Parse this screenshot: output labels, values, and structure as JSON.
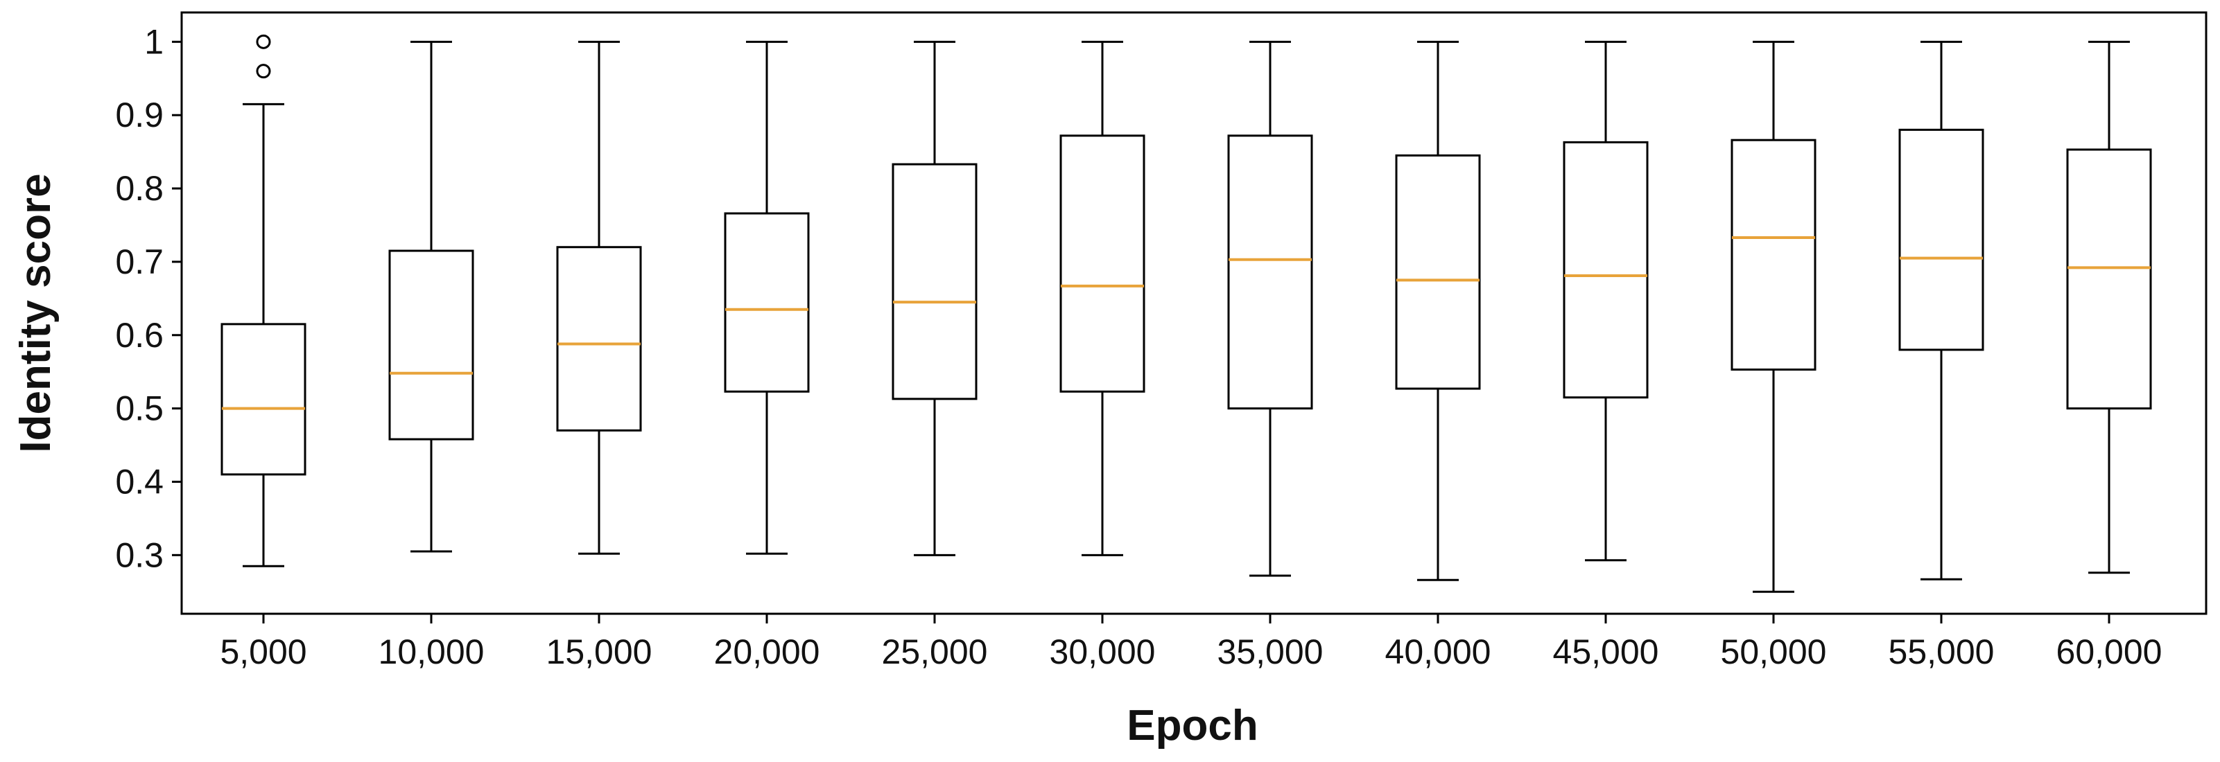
{
  "chart_data": {
    "type": "boxplot",
    "xlabel": "Epoch",
    "ylabel": "Identity score",
    "ylim": [
      0.22,
      1.04
    ],
    "yticks": [
      0.3,
      0.4,
      0.5,
      0.6,
      0.7,
      0.8,
      0.9,
      1
    ],
    "ytick_labels": [
      "0.3",
      "0.4",
      "0.5",
      "0.6",
      "0.7",
      "0.8",
      "0.9",
      "1"
    ],
    "grid": false,
    "colors": {
      "box": "#000000",
      "median": "#e8a33a",
      "background": "#ffffff"
    },
    "categories": [
      "5,000",
      "10,000",
      "15,000",
      "20,000",
      "25,000",
      "30,000",
      "35,000",
      "40,000",
      "45,000",
      "50,000",
      "55,000",
      "60,000"
    ],
    "boxes": [
      {
        "whisker_low": 0.285,
        "q1": 0.41,
        "median": 0.5,
        "q3": 0.615,
        "whisker_high": 0.915,
        "outliers": [
          0.96,
          1.0
        ]
      },
      {
        "whisker_low": 0.305,
        "q1": 0.458,
        "median": 0.548,
        "q3": 0.715,
        "whisker_high": 1.0,
        "outliers": []
      },
      {
        "whisker_low": 0.302,
        "q1": 0.47,
        "median": 0.588,
        "q3": 0.72,
        "whisker_high": 1.0,
        "outliers": []
      },
      {
        "whisker_low": 0.302,
        "q1": 0.523,
        "median": 0.635,
        "q3": 0.766,
        "whisker_high": 1.0,
        "outliers": []
      },
      {
        "whisker_low": 0.3,
        "q1": 0.513,
        "median": 0.645,
        "q3": 0.833,
        "whisker_high": 1.0,
        "outliers": []
      },
      {
        "whisker_low": 0.3,
        "q1": 0.523,
        "median": 0.667,
        "q3": 0.872,
        "whisker_high": 1.0,
        "outliers": []
      },
      {
        "whisker_low": 0.272,
        "q1": 0.5,
        "median": 0.703,
        "q3": 0.872,
        "whisker_high": 1.0,
        "outliers": []
      },
      {
        "whisker_low": 0.266,
        "q1": 0.527,
        "median": 0.675,
        "q3": 0.845,
        "whisker_high": 1.0,
        "outliers": []
      },
      {
        "whisker_low": 0.293,
        "q1": 0.515,
        "median": 0.681,
        "q3": 0.863,
        "whisker_high": 1.0,
        "outliers": []
      },
      {
        "whisker_low": 0.25,
        "q1": 0.553,
        "median": 0.733,
        "q3": 0.866,
        "whisker_high": 1.0,
        "outliers": []
      },
      {
        "whisker_low": 0.267,
        "q1": 0.58,
        "median": 0.705,
        "q3": 0.88,
        "whisker_high": 1.0,
        "outliers": []
      },
      {
        "whisker_low": 0.276,
        "q1": 0.5,
        "median": 0.692,
        "q3": 0.853,
        "whisker_high": 1.0,
        "outliers": []
      }
    ]
  }
}
